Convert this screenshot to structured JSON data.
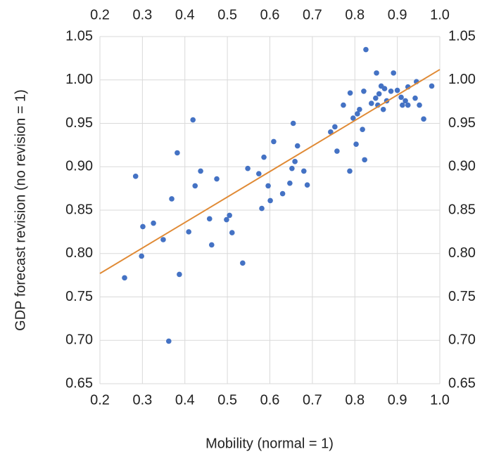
{
  "chart_data": {
    "type": "scatter",
    "x_label": "Mobility (normal = 1)",
    "y_label": "GDP forecast revision (no revision = 1)",
    "xlim": [
      0.2,
      1.0
    ],
    "xticks": [
      0.2,
      0.3,
      0.4,
      0.5,
      0.6,
      0.7,
      0.8,
      0.9,
      {
        "value": 1.0,
        "label": "1.0"
      }
    ],
    "ylim": [
      0.65,
      1.05
    ],
    "yticks": [
      {
        "value": 0.65,
        "label": "0.65"
      },
      {
        "value": 0.7,
        "label": "0.70"
      },
      {
        "value": 0.75,
        "label": "0.75"
      },
      {
        "value": 0.8,
        "label": "0.80"
      },
      {
        "value": 0.85,
        "label": "0.85"
      },
      {
        "value": 0.9,
        "label": "0.90"
      },
      {
        "value": 0.95,
        "label": "0.95"
      },
      {
        "value": 1.0,
        "label": "1.00"
      },
      {
        "value": 1.05,
        "label": "1.05"
      }
    ],
    "grid": true,
    "series": [
      {
        "color": "#4472c4",
        "x": [
          0.258,
          0.284,
          0.298,
          0.301,
          0.326,
          0.349,
          0.362,
          0.369,
          0.382,
          0.387,
          0.409,
          0.419,
          0.424,
          0.437,
          0.458,
          0.463,
          0.475,
          0.498,
          0.505,
          0.511,
          0.536,
          0.548,
          0.574,
          0.581,
          0.586,
          0.596,
          0.601,
          0.609,
          0.63,
          0.647,
          0.652,
          0.655,
          0.659,
          0.665,
          0.68,
          0.688,
          0.743,
          0.753,
          0.758,
          0.773,
          0.788,
          0.789,
          0.796,
          0.803,
          0.806,
          0.811,
          0.818,
          0.821,
          0.823,
          0.826,
          0.839,
          0.849,
          0.851,
          0.854,
          0.857,
          0.862,
          0.867,
          0.87,
          0.875,
          0.885,
          0.891,
          0.9,
          0.909,
          0.912,
          0.919,
          0.925,
          0.925,
          0.942,
          0.945,
          0.952,
          0.962,
          0.981
        ],
        "values": [
          0.772,
          0.889,
          0.797,
          0.831,
          0.835,
          0.816,
          0.699,
          0.863,
          0.916,
          0.776,
          0.825,
          0.954,
          0.878,
          0.895,
          0.84,
          0.81,
          0.886,
          0.839,
          0.844,
          0.824,
          0.789,
          0.898,
          0.892,
          0.852,
          0.911,
          0.878,
          0.861,
          0.929,
          0.869,
          0.881,
          0.898,
          0.95,
          0.906,
          0.924,
          0.895,
          0.879,
          0.94,
          0.946,
          0.918,
          0.971,
          0.895,
          0.985,
          0.956,
          0.926,
          0.961,
          0.966,
          0.943,
          0.987,
          0.908,
          1.035,
          0.973,
          0.979,
          1.008,
          0.971,
          0.984,
          0.993,
          0.966,
          0.99,
          0.976,
          0.987,
          1.008,
          0.988,
          0.98,
          0.971,
          0.976,
          0.992,
          0.971,
          0.979,
          0.998,
          0.971,
          0.955,
          0.993
        ]
      }
    ],
    "trendline": {
      "color": "#e08a35",
      "x": [
        0.2,
        1.0
      ],
      "values": [
        0.777,
        1.012
      ]
    }
  }
}
